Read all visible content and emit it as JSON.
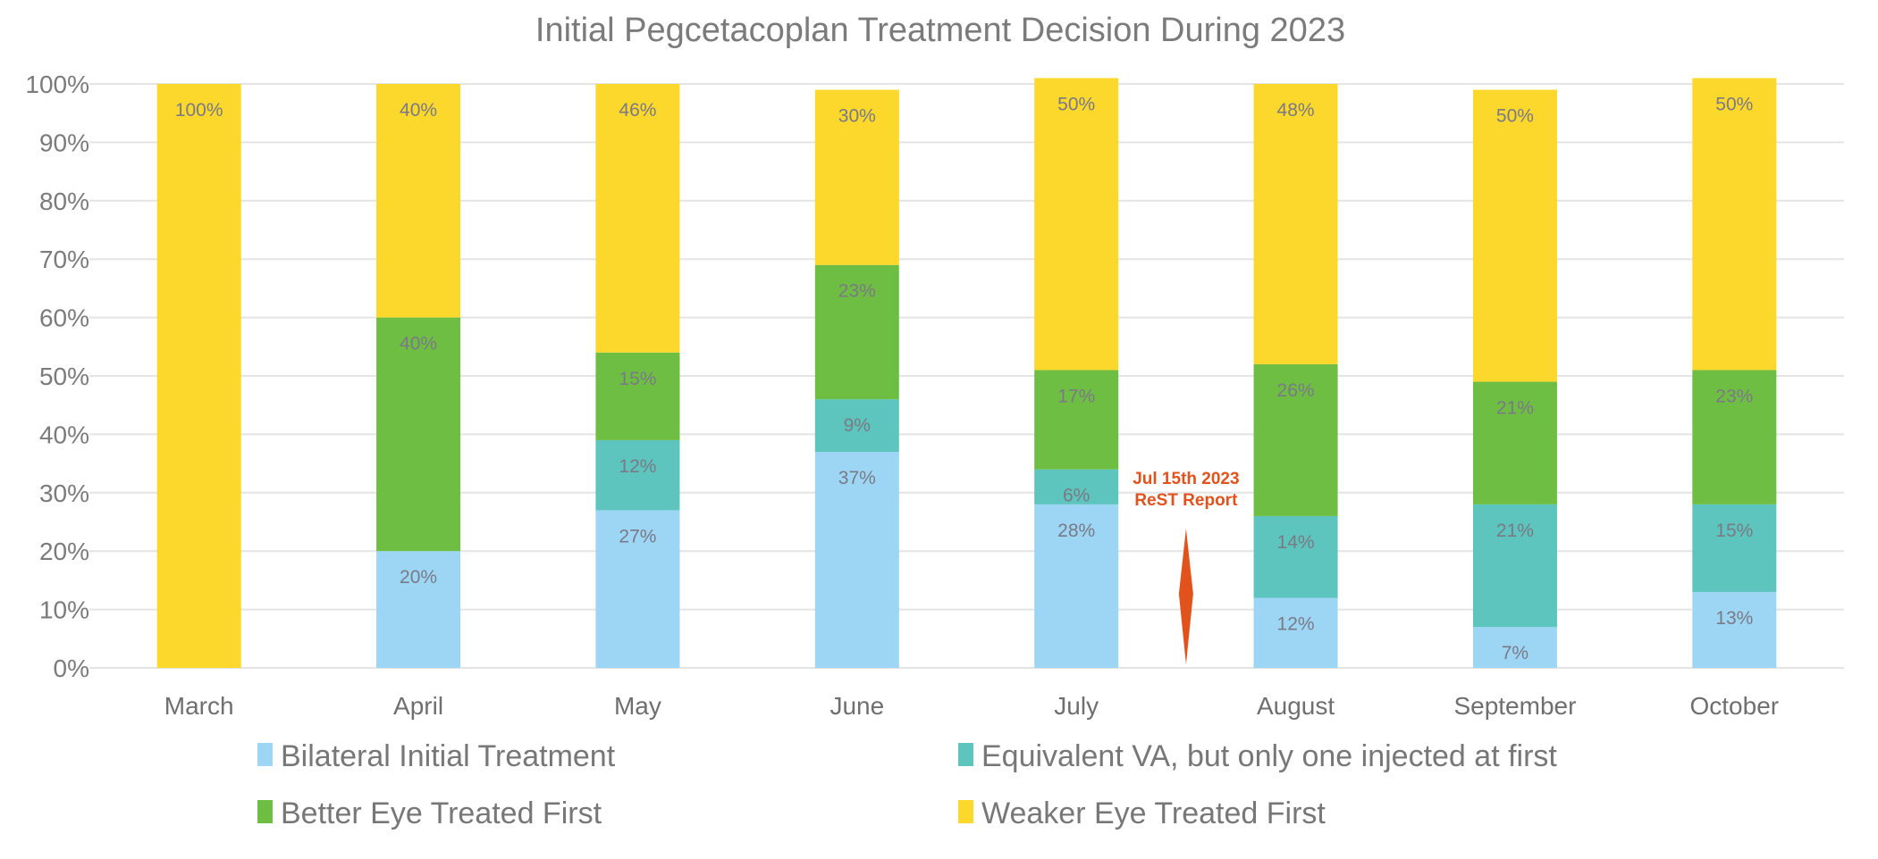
{
  "chart_data": {
    "type": "bar",
    "stacked": true,
    "title": "Initial Pegcetacoplan Treatment Decision During 2023",
    "xlabel": "",
    "ylabel": "",
    "ylim": [
      0,
      100
    ],
    "yticks": [
      "0%",
      "10%",
      "20%",
      "30%",
      "40%",
      "50%",
      "60%",
      "70%",
      "80%",
      "90%",
      "100%"
    ],
    "grid": true,
    "legend_position": "bottom",
    "categories": [
      "March",
      "April",
      "May",
      "June",
      "July",
      "August",
      "September",
      "October"
    ],
    "series": [
      {
        "name": "Bilateral Initial Treatment",
        "color": "#9dd6f5",
        "values": [
          0,
          20,
          27,
          37,
          28,
          12,
          7,
          13
        ]
      },
      {
        "name": "Equivalent VA, but only one injected at first",
        "color": "#5dc5bd",
        "values": [
          0,
          0,
          12,
          9,
          6,
          14,
          21,
          15
        ]
      },
      {
        "name": "Better Eye Treated First",
        "color": "#6fbe44",
        "values": [
          0,
          40,
          15,
          23,
          17,
          26,
          21,
          23
        ]
      },
      {
        "name": "Weaker Eye Treated First",
        "color": "#fcd72c",
        "values": [
          100,
          40,
          46,
          30,
          50,
          48,
          50,
          50
        ]
      }
    ],
    "annotation": {
      "lines": [
        "Jul 15th 2023",
        "ReST Report"
      ],
      "between": [
        "July",
        "August"
      ],
      "color": "#e2521d"
    }
  }
}
